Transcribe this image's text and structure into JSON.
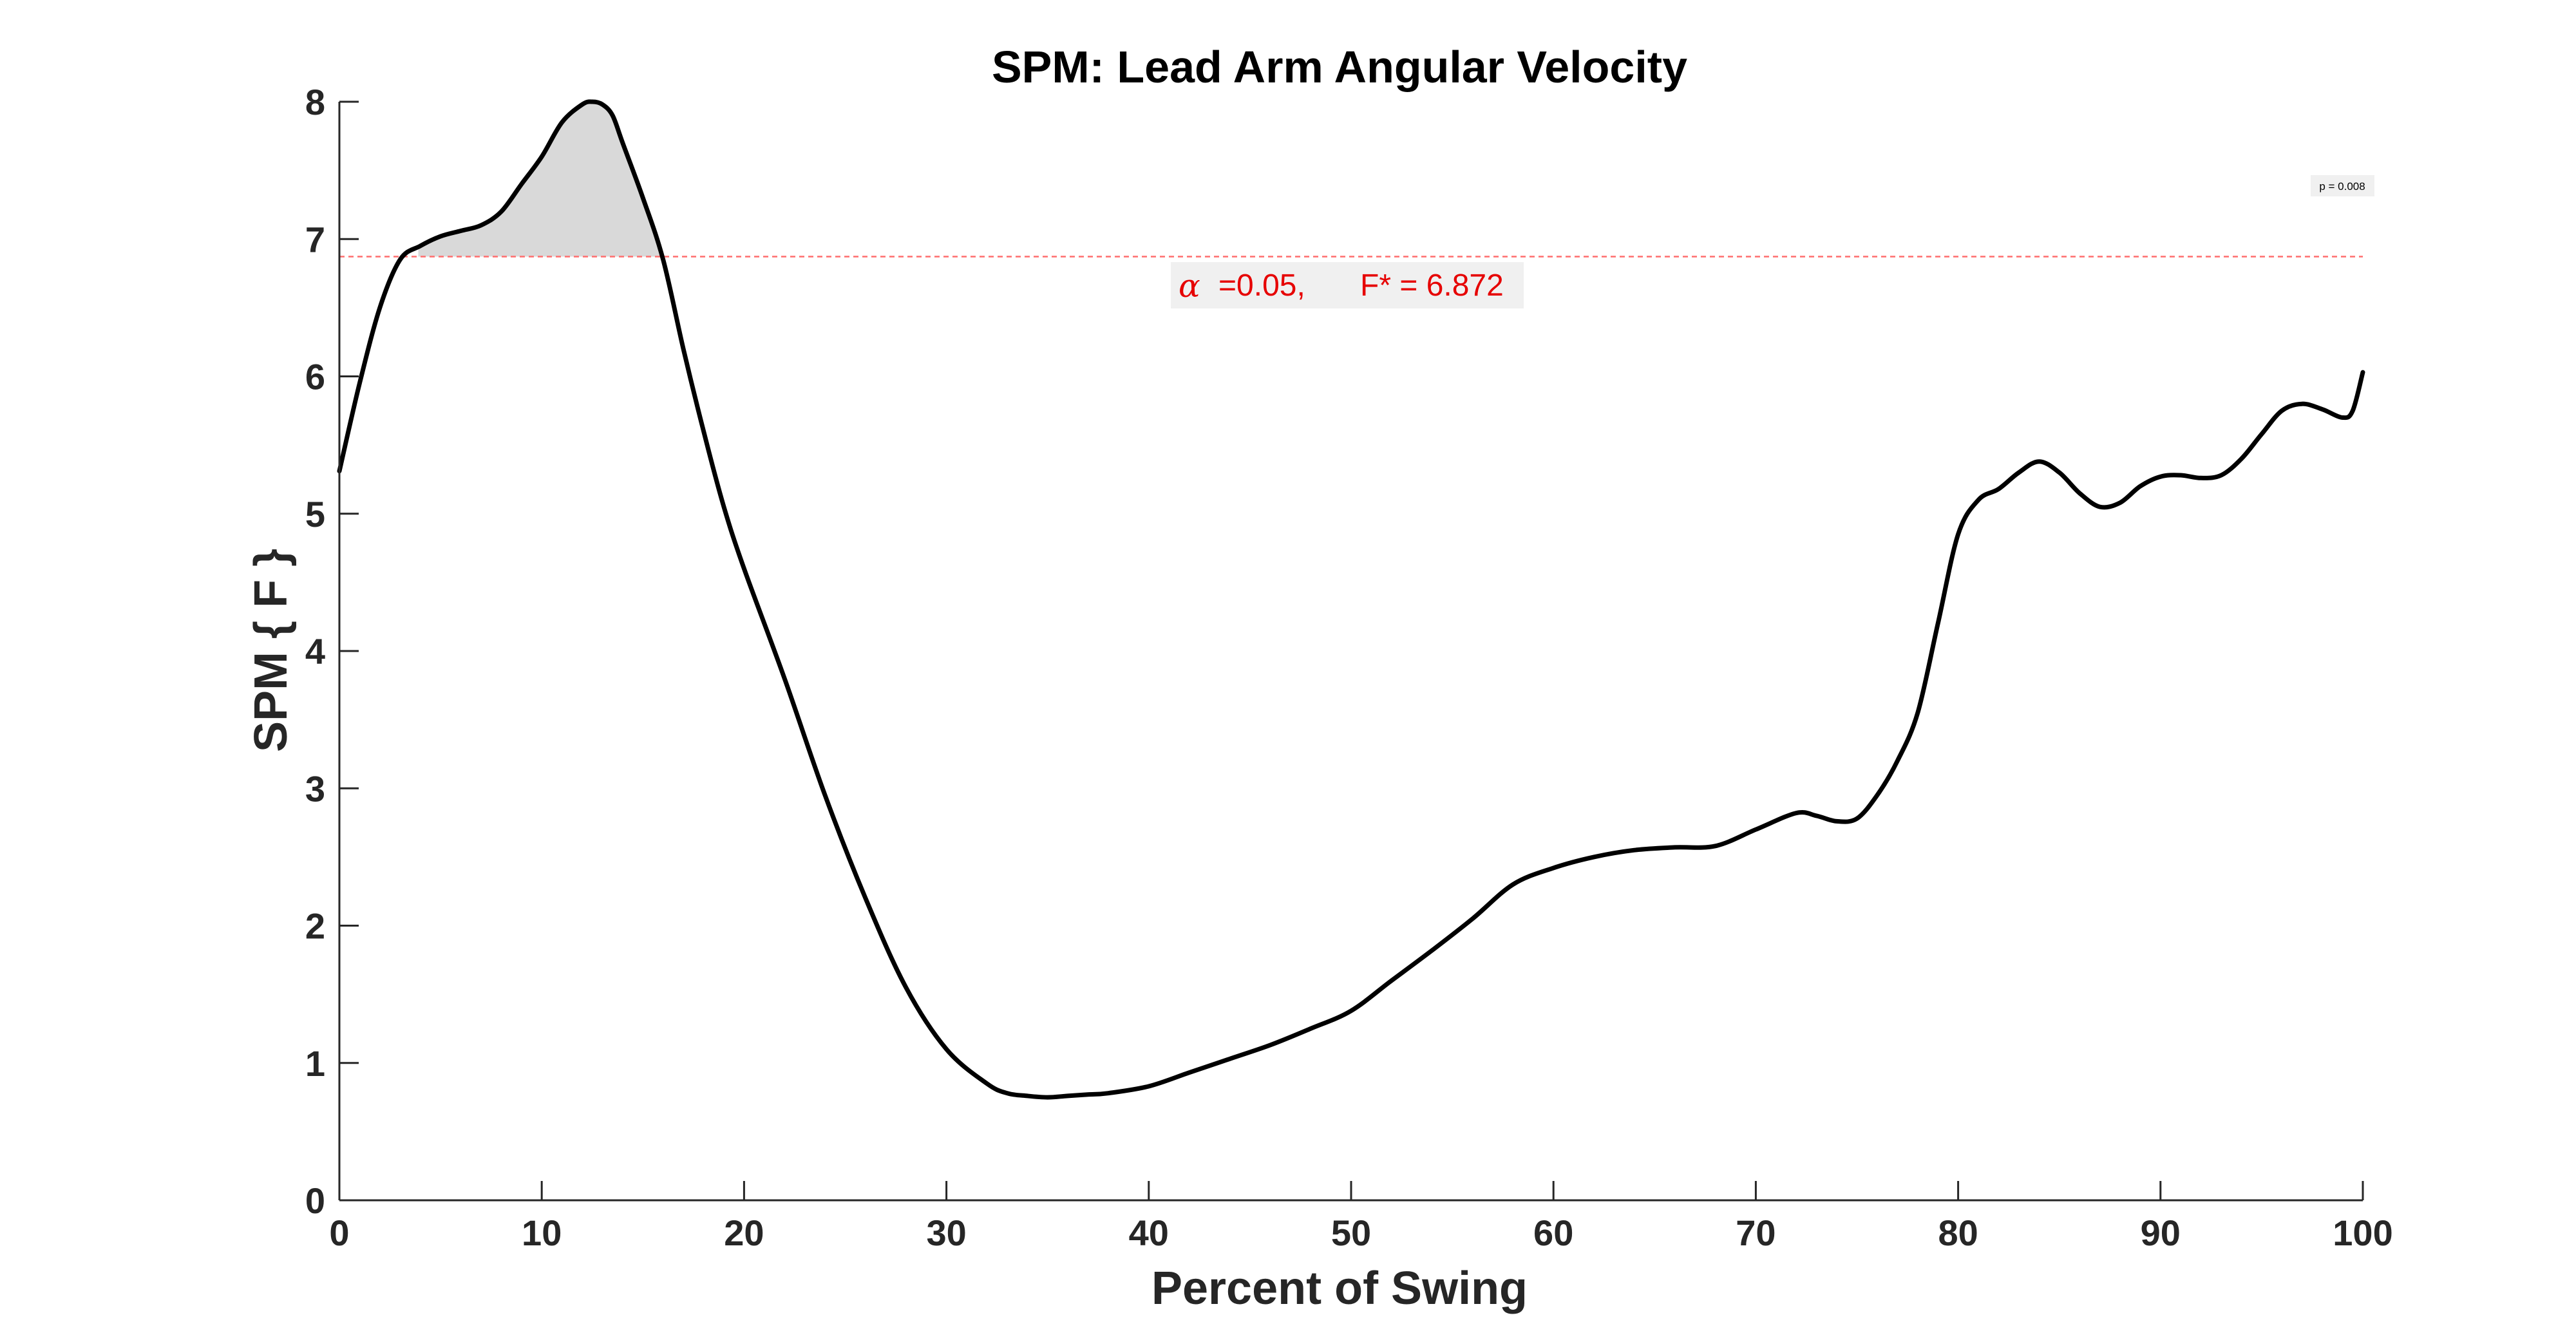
{
  "chart_data": {
    "type": "line",
    "title": "SPM: Lead Arm Angular Velocity",
    "xlabel": "Percent of Swing",
    "ylabel": "SPM { F }",
    "xlim": [
      0,
      100
    ],
    "ylim": [
      0,
      8
    ],
    "xticks": [
      0,
      10,
      20,
      30,
      40,
      50,
      60,
      70,
      80,
      90,
      100
    ],
    "yticks": [
      0,
      1,
      2,
      3,
      4,
      5,
      6,
      7,
      8
    ],
    "grid": false,
    "threshold": 6.872,
    "cluster_range": [
      3.9,
      16.4
    ],
    "series": [
      {
        "x": [
          0,
          1,
          2,
          3,
          4,
          5,
          6,
          7,
          8,
          9,
          10,
          11,
          12,
          12.5,
          13,
          13.5,
          14,
          15,
          16,
          17,
          18,
          19,
          20,
          22,
          24,
          26,
          28,
          30,
          32,
          33,
          34,
          35,
          36,
          37,
          38,
          40,
          42,
          44,
          46,
          48,
          50,
          52,
          54,
          56,
          58,
          60,
          62,
          64,
          66,
          68,
          70,
          72,
          73,
          74,
          75,
          76,
          77,
          78,
          79,
          80,
          81,
          82,
          83,
          84,
          85,
          86,
          87,
          88,
          89,
          90,
          91,
          92,
          93,
          94,
          95,
          96,
          97,
          98,
          99,
          99.5,
          100
        ],
        "y": [
          5.31,
          5.95,
          6.5,
          6.85,
          6.95,
          7.02,
          7.06,
          7.1,
          7.2,
          7.4,
          7.6,
          7.85,
          7.98,
          8.0,
          7.98,
          7.9,
          7.7,
          7.3,
          6.85,
          6.2,
          5.6,
          5.05,
          4.6,
          3.8,
          2.95,
          2.2,
          1.55,
          1.1,
          0.85,
          0.78,
          0.76,
          0.75,
          0.76,
          0.77,
          0.78,
          0.83,
          0.93,
          1.03,
          1.13,
          1.25,
          1.38,
          1.6,
          1.82,
          2.05,
          2.3,
          2.42,
          2.5,
          2.55,
          2.57,
          2.58,
          2.7,
          2.82,
          2.8,
          2.76,
          2.78,
          2.95,
          3.2,
          3.55,
          4.2,
          4.85,
          5.1,
          5.18,
          5.3,
          5.38,
          5.3,
          5.15,
          5.05,
          5.08,
          5.2,
          5.27,
          5.28,
          5.26,
          5.28,
          5.4,
          5.58,
          5.75,
          5.8,
          5.76,
          5.7,
          5.75,
          6.03
        ]
      }
    ],
    "annotation": {
      "alpha_symbol": "α",
      "alpha_value": "=0.05,",
      "fstar": "F* = 6.872"
    },
    "p_value_label": "p = 0.008",
    "colors": {
      "curve": "#000000",
      "threshold": "#ff6e6e",
      "cluster": "#d9d9d9",
      "annotation": "#e60000"
    }
  }
}
